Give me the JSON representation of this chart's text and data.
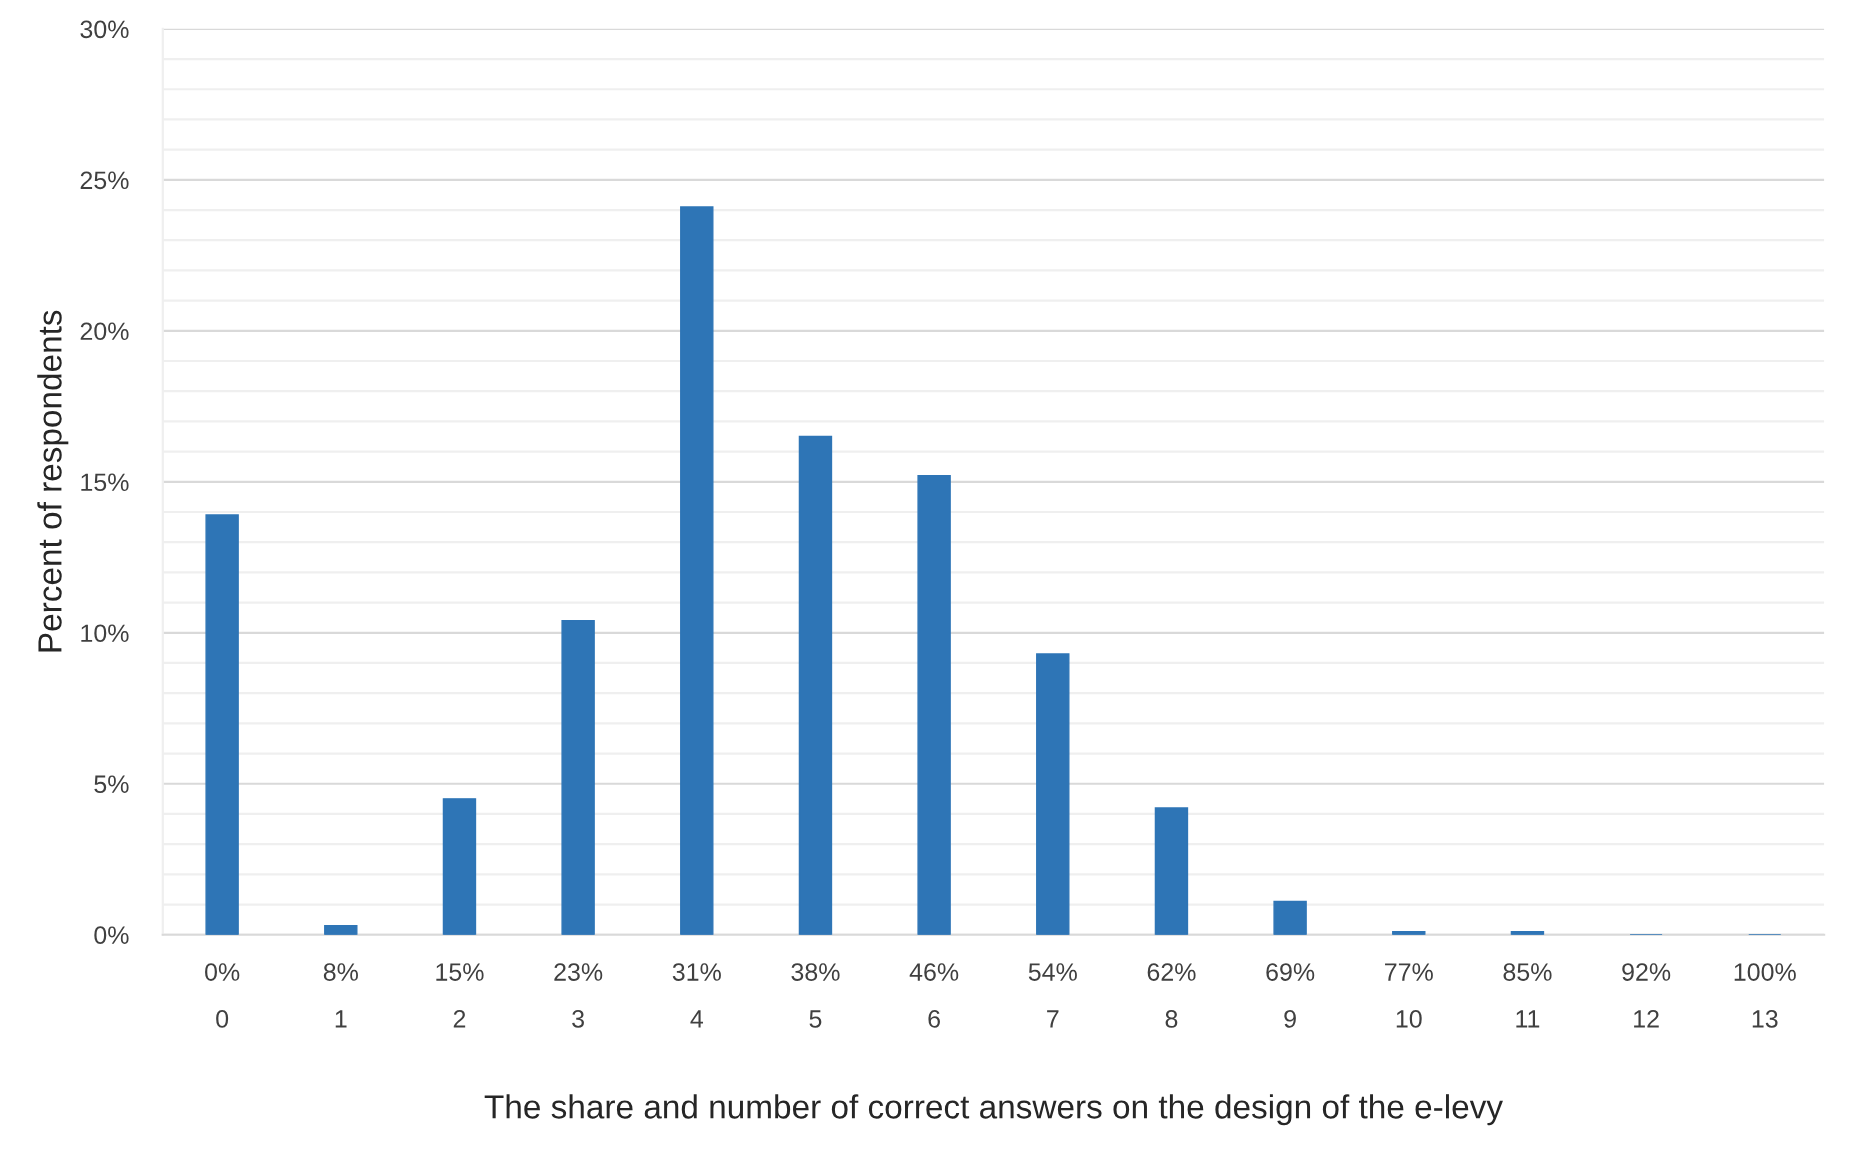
{
  "chart_data": {
    "type": "bar",
    "xlabel": "The share and number of correct answers on the design of the e-levy",
    "ylabel": "Percent of respondents",
    "categories": [
      "0%\n0",
      "8%\n1",
      "15%\n2",
      "23%\n3",
      "31%\n4",
      "38%\n5",
      "46%\n6",
      "54%\n7",
      "62%\n8",
      "69%\n9",
      "77%\n10",
      "85%\n11",
      "92%\n12",
      "100%\n13"
    ],
    "values": [
      13.9,
      0.3,
      4.5,
      10.4,
      24.1,
      16.5,
      15.2,
      9.3,
      4.2,
      1.1,
      0.1,
      0.1,
      0,
      0
    ],
    "color": "#2e75b6",
    "ylim": [
      0,
      30
    ],
    "yticks": [
      {
        "value": 0,
        "label": "0%"
      },
      {
        "value": 1,
        "label": null
      },
      {
        "value": 2,
        "label": null
      },
      {
        "value": 3,
        "label": null
      },
      {
        "value": 4,
        "label": null
      },
      {
        "value": 5,
        "label": "5%"
      },
      {
        "value": 6,
        "label": null
      },
      {
        "value": 7,
        "label": null
      },
      {
        "value": 8,
        "label": null
      },
      {
        "value": 9,
        "label": null
      },
      {
        "value": 10,
        "label": "10%"
      },
      {
        "value": 11,
        "label": null
      },
      {
        "value": 12,
        "label": null
      },
      {
        "value": 13,
        "label": null
      },
      {
        "value": 14,
        "label": null
      },
      {
        "value": 15,
        "label": "15%"
      },
      {
        "value": 16,
        "label": null
      },
      {
        "value": 17,
        "label": null
      },
      {
        "value": 18,
        "label": null
      },
      {
        "value": 19,
        "label": null
      },
      {
        "value": 20,
        "label": "20%"
      },
      {
        "value": 21,
        "label": null
      },
      {
        "value": 22,
        "label": null
      },
      {
        "value": 23,
        "label": null
      },
      {
        "value": 24,
        "label": null
      },
      {
        "value": 25,
        "label": "25%"
      },
      {
        "value": 26,
        "label": null
      },
      {
        "value": 27,
        "label": null
      },
      {
        "value": 28,
        "label": null
      },
      {
        "value": 29,
        "label": null
      },
      {
        "value": 30,
        "label": "30%"
      }
    ],
    "grid": "y"
  }
}
